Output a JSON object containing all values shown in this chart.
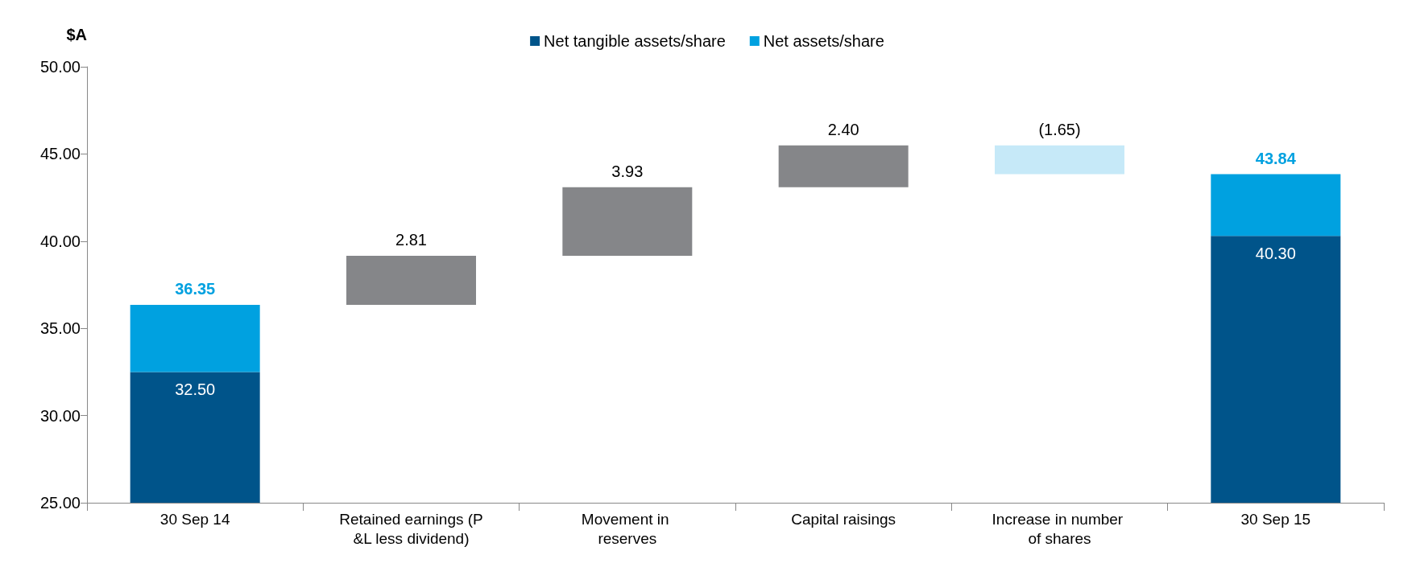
{
  "chart_data": {
    "type": "bar",
    "ylabel": "$A",
    "categories": [
      "30 Sep 14",
      "Retained earnings (P&L less dividend)",
      "Movement in reserves",
      "Capital raisings",
      "Increase in number of shares",
      "30 Sep 15"
    ],
    "ylim": [
      25,
      50
    ],
    "yticks": [
      {
        "value": 25,
        "label": "25.00"
      },
      {
        "value": 30,
        "label": "30.00"
      },
      {
        "value": 35,
        "label": "35.00"
      },
      {
        "value": 40,
        "label": "40.00"
      },
      {
        "value": 45,
        "label": "45.00"
      },
      {
        "value": 50,
        "label": "50.00"
      }
    ],
    "grid": false,
    "legend": "top",
    "series": [
      {
        "name": "Net tangible assets/share",
        "color": "#00548a",
        "values": [
          32.5,
          null,
          null,
          null,
          null,
          40.3
        ],
        "value_labels": [
          "32.50",
          null,
          null,
          null,
          null,
          "40.30"
        ]
      },
      {
        "name": "Net assets/share",
        "color": "#00a1e0",
        "base": [
          32.5,
          null,
          null,
          null,
          null,
          40.3
        ],
        "values": [
          3.85,
          null,
          null,
          null,
          null,
          3.54
        ]
      },
      {
        "color": "#858689",
        "base": [
          null,
          36.35,
          39.16,
          43.09,
          null,
          null
        ],
        "values": [
          null,
          2.81,
          3.93,
          2.4,
          null,
          null
        ],
        "value_labels": [
          null,
          "2.81",
          "3.93",
          "2.40",
          null,
          null
        ]
      },
      {
        "color": "#c6e9f8",
        "base": [
          null,
          null,
          null,
          null,
          45.49,
          null
        ],
        "values": [
          null,
          null,
          null,
          null,
          -1.65,
          null
        ],
        "value_labels": [
          null,
          null,
          null,
          null,
          "(1.65)",
          null
        ]
      }
    ],
    "totals": [
      "36.35",
      null,
      null,
      null,
      null,
      "43.84"
    ]
  }
}
